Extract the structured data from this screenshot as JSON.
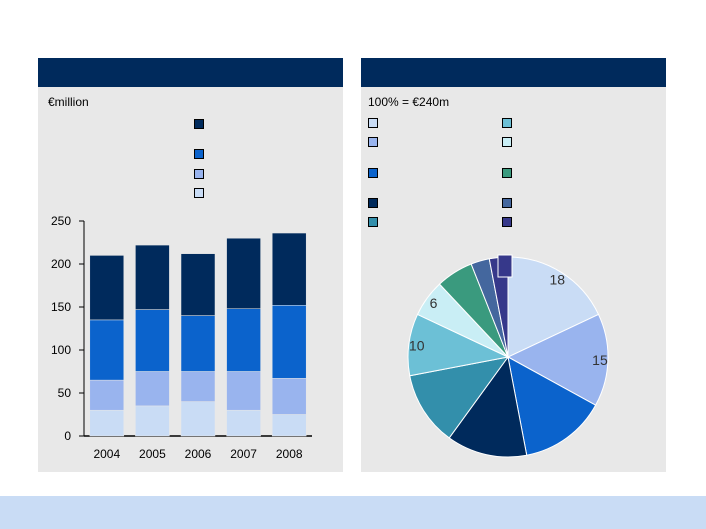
{
  "left_panel": {
    "unit_label": "€million"
  },
  "right_panel": {
    "total_label": "100% = €240m"
  },
  "colors": {
    "header": "#002a5c",
    "panel_bg": "#e8e8e8",
    "footer": "#c9dcf5",
    "bar_series": [
      "#c9dcf5",
      "#99b4ee",
      "#0b63cc",
      "#002a5c"
    ],
    "pie_slices": [
      "#c9dcf5",
      "#99b4ee",
      "#0b63cc",
      "#002a5c",
      "#338fab",
      "#6cc0d6",
      "#c9eef5",
      "#3a9a7e",
      "#44679e",
      "#36388a"
    ]
  },
  "chart_data": [
    {
      "type": "bar",
      "stacked": true,
      "categories": [
        "2004",
        "2005",
        "2006",
        "2007",
        "2008"
      ],
      "series": [
        {
          "name": "",
          "values": [
            30,
            35,
            40,
            30,
            25
          ]
        },
        {
          "name": "",
          "values": [
            35,
            40,
            35,
            45,
            42
          ]
        },
        {
          "name": "",
          "values": [
            70,
            72,
            65,
            73,
            85
          ]
        },
        {
          "name": "",
          "values": [
            75,
            75,
            72,
            82,
            84
          ]
        }
      ],
      "yticks": [
        0,
        50,
        100,
        150,
        200,
        250
      ],
      "ylim": [
        0,
        250
      ],
      "title": "",
      "xlabel": "",
      "ylabel": "€million",
      "legend_position": "top"
    },
    {
      "type": "pie",
      "labels": [
        "",
        "",
        "",
        "",
        "",
        "",
        "",
        "",
        "",
        ""
      ],
      "values": [
        18,
        15,
        14,
        13,
        12,
        10,
        6,
        6,
        3,
        3
      ],
      "data_labels": [
        "18",
        "15",
        "",
        "",
        "",
        "10",
        "6",
        "",
        "",
        ""
      ],
      "total_label": "100% = €240m",
      "legend_position": "top"
    }
  ]
}
